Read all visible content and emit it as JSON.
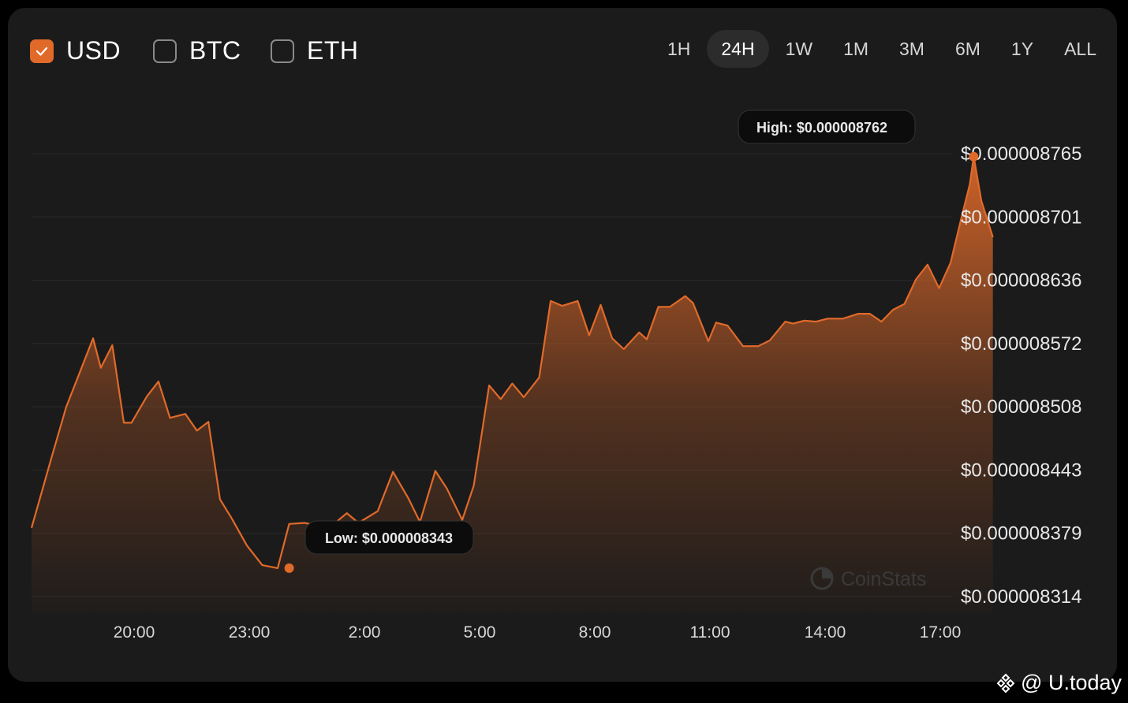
{
  "currencies": [
    {
      "label": "USD",
      "checked": true
    },
    {
      "label": "BTC",
      "checked": false
    },
    {
      "label": "ETH",
      "checked": false
    }
  ],
  "ranges": [
    "1H",
    "24H",
    "1W",
    "1M",
    "3M",
    "6M",
    "1Y",
    "ALL"
  ],
  "active_range": "24H",
  "accent": "#e06a2a",
  "watermark": "CoinStats",
  "credit": "@ U.today",
  "high_label": "High: $0.000008762",
  "low_label": "Low: $0.000008343",
  "chart_data": {
    "type": "area",
    "title": "",
    "xlabel": "",
    "ylabel": "",
    "x_ticks": [
      "20:00",
      "23:00",
      "2:00",
      "5:00",
      "8:00",
      "11:00",
      "14:00",
      "17:00"
    ],
    "y_ticks": [
      "$0.000008765",
      "$0.000008701",
      "$0.000008636",
      "$0.000008572",
      "$0.000008508",
      "$0.000008443",
      "$0.000008379",
      "$0.000008314"
    ],
    "ylim": [
      8.314e-06,
      8.765e-06
    ],
    "x_hours": [
      17.3,
      17.8,
      18.2,
      18.6,
      18.9,
      19.1,
      19.4,
      19.7,
      19.9,
      20.3,
      20.6,
      20.9,
      21.3,
      21.6,
      21.9,
      22.2,
      22.5,
      22.9,
      23.3,
      23.7,
      24.0,
      24.4,
      24.8,
      25.1,
      25.5,
      25.8,
      26.3,
      26.7,
      27.1,
      27.4,
      27.8,
      28.1,
      28.5,
      28.8,
      29.2,
      29.5,
      29.8,
      30.1,
      30.5,
      30.8,
      31.1,
      31.5,
      31.8,
      32.1,
      32.4,
      32.7,
      33.1,
      33.3,
      33.6,
      33.9,
      34.3,
      34.5,
      34.9,
      35.1,
      35.4,
      35.8,
      36.2,
      36.5,
      36.9,
      37.1,
      37.4,
      37.7,
      38.0,
      38.4,
      38.8,
      39.1,
      39.4,
      39.7,
      40.0,
      40.3,
      40.6,
      40.9,
      41.2,
      41.5,
      41.7,
      41.8,
      42.0,
      42.3
    ],
    "values": [
      8.384e-06,
      8.453e-06,
      8.507e-06,
      8.547e-06,
      8.577e-06,
      8.547e-06,
      8.57e-06,
      8.491e-06,
      8.491e-06,
      8.518e-06,
      8.533e-06,
      8.496e-06,
      8.5e-06,
      8.483e-06,
      8.492e-06,
      8.413e-06,
      8.394e-06,
      8.366e-06,
      8.346e-06,
      8.343e-06,
      8.388e-06,
      8.389e-06,
      8.386e-06,
      8.386e-06,
      8.399e-06,
      8.389e-06,
      8.401e-06,
      8.441e-06,
      8.414e-06,
      8.39e-06,
      8.442e-06,
      8.424e-06,
      8.392e-06,
      8.427e-06,
      8.529e-06,
      8.515e-06,
      8.531e-06,
      8.517e-06,
      8.537e-06,
      8.615e-06,
      8.61e-06,
      8.615e-06,
      8.58e-06,
      8.611e-06,
      8.577e-06,
      8.566e-06,
      8.583e-06,
      8.576e-06,
      8.609e-06,
      8.609e-06,
      8.62e-06,
      8.613e-06,
      8.574e-06,
      8.593e-06,
      8.59e-06,
      8.569e-06,
      8.569e-06,
      8.575e-06,
      8.594e-06,
      8.592e-06,
      8.595e-06,
      8.594e-06,
      8.597e-06,
      8.597e-06,
      8.602e-06,
      8.602e-06,
      8.594e-06,
      8.606e-06,
      8.612e-06,
      8.637e-06,
      8.652e-06,
      8.628e-06,
      8.654e-06,
      8.703e-06,
      8.734e-06,
      8.762e-06,
      8.717e-06,
      8.68e-06
    ],
    "high": {
      "x_hours": 41.8,
      "value": 8.762e-06
    },
    "low": {
      "x_hours": 24.0,
      "value": 8.343e-06
    },
    "grid": true,
    "legend": "none"
  }
}
